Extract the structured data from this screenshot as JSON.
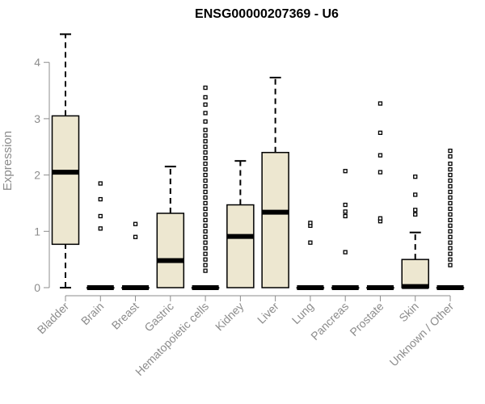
{
  "chart_data": {
    "type": "boxplot",
    "title": "ENSG00000207369 - U6",
    "xlabel": "",
    "ylabel": "Expression",
    "ylim": [
      0,
      4.6
    ],
    "yticks": [
      0,
      1,
      2,
      3,
      4
    ],
    "grid": false,
    "colors": {
      "box_fill": "#ede7d0",
      "stroke": "#000000",
      "axis": "#8c8c8c"
    },
    "categories": [
      "Bladder",
      "Brain",
      "Breast",
      "Gastric",
      "Hematopoietic cells",
      "Kidney",
      "Liver",
      "Lung",
      "Pancreas",
      "Prostate",
      "Skin",
      "Unknown / Other"
    ],
    "boxes": [
      {
        "min": 0,
        "q1": 0.77,
        "median": 2.05,
        "q3": 3.05,
        "max": 4.5,
        "outliers": []
      },
      {
        "min": 0,
        "q1": 0,
        "median": 0,
        "q3": 0,
        "max": 0,
        "outliers": [
          1.05,
          1.27,
          1.57,
          1.85
        ]
      },
      {
        "min": 0,
        "q1": 0,
        "median": 0,
        "q3": 0,
        "max": 0,
        "outliers": [
          0.9,
          1.13
        ]
      },
      {
        "min": 0,
        "q1": 0,
        "median": 0.48,
        "q3": 1.32,
        "max": 2.15,
        "outliers": []
      },
      {
        "min": 0,
        "q1": 0,
        "median": 0,
        "q3": 0,
        "max": 0,
        "outliers": [
          0.3,
          0.4,
          0.5,
          0.6,
          0.7,
          0.8,
          0.9,
          1.0,
          1.1,
          1.2,
          1.3,
          1.4,
          1.5,
          1.6,
          1.7,
          1.8,
          1.9,
          2.0,
          2.1,
          2.2,
          2.3,
          2.4,
          2.5,
          2.6,
          2.7,
          2.8,
          2.95,
          3.1,
          3.25,
          3.38,
          3.55
        ]
      },
      {
        "min": 0,
        "q1": 0,
        "median": 0.91,
        "q3": 1.47,
        "max": 2.25,
        "outliers": []
      },
      {
        "min": 0,
        "q1": 0,
        "median": 1.34,
        "q3": 2.4,
        "max": 3.73,
        "outliers": []
      },
      {
        "min": 0,
        "q1": 0,
        "median": 0,
        "q3": 0,
        "max": 0,
        "outliers": [
          0.8,
          1.1,
          1.15
        ]
      },
      {
        "min": 0,
        "q1": 0,
        "median": 0,
        "q3": 0,
        "max": 0,
        "outliers": [
          0.63,
          1.27,
          1.35,
          1.47,
          2.07
        ]
      },
      {
        "min": 0,
        "q1": 0,
        "median": 0,
        "q3": 0,
        "max": 0,
        "outliers": [
          1.18,
          1.23,
          2.05,
          2.35,
          2.75,
          3.27
        ]
      },
      {
        "min": 0,
        "q1": 0,
        "median": 0.02,
        "q3": 0.5,
        "max": 0.98,
        "outliers": [
          1.3,
          1.38,
          1.65,
          1.97
        ]
      },
      {
        "min": 0,
        "q1": 0,
        "median": 0,
        "q3": 0,
        "max": 0,
        "outliers": [
          0.4,
          0.5,
          0.6,
          0.7,
          0.8,
          0.9,
          1.0,
          1.1,
          1.2,
          1.3,
          1.4,
          1.5,
          1.6,
          1.7,
          1.8,
          1.9,
          2.0,
          2.1,
          2.2,
          2.33,
          2.43
        ]
      }
    ]
  }
}
